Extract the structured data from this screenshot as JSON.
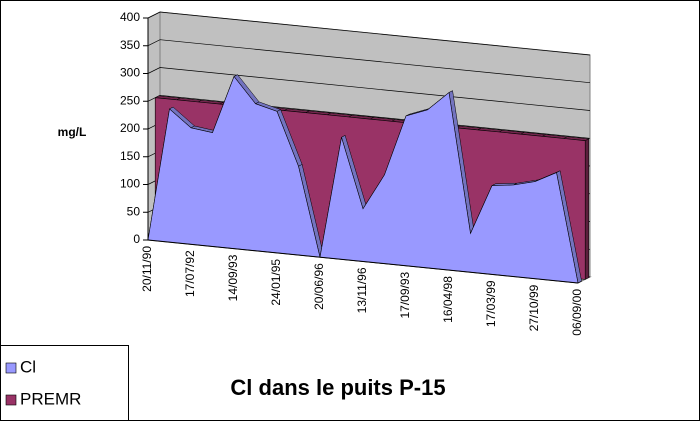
{
  "chart_data": {
    "type": "area3d",
    "title": "Cl dans le puits P-15",
    "y_label": "mg/L",
    "categories": [
      "20/11/90",
      null,
      "17/07/92",
      null,
      "14/09/93",
      null,
      "24/01/95",
      null,
      "20/06/96",
      null,
      "13/11/96",
      null,
      "17/09/93",
      null,
      "16/04/98",
      null,
      "17/03/99",
      null,
      "27/10/99",
      null,
      "06/09/00"
    ],
    "series": [
      {
        "name": "Cl",
        "color": "#9999ff",
        "values": [
          0,
          240,
          210,
          205,
          310,
          265,
          255,
          160,
          0,
          220,
          95,
          160,
          270,
          285,
          320,
          70,
          160,
          165,
          175,
          195,
          0
        ]
      },
      {
        "name": "PREMR",
        "color": "#993366",
        "values": [
          250,
          250,
          250,
          250,
          250,
          250,
          250,
          250,
          250,
          250,
          250,
          250,
          250,
          250,
          250,
          250,
          250,
          250,
          250,
          250,
          250
        ]
      }
    ],
    "ylim": [
      0,
      400
    ],
    "yticks": [
      0,
      50,
      100,
      150,
      200,
      250,
      300,
      350,
      400
    ],
    "grid": true,
    "legend": "bottom-left"
  }
}
